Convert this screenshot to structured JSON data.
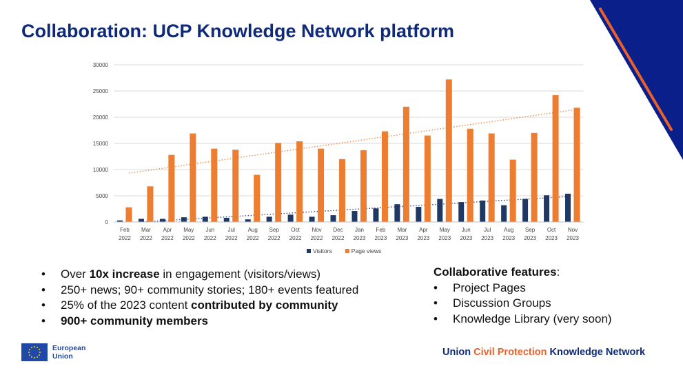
{
  "title": "Collaboration: UCP Knowledge Network platform",
  "chart_data": {
    "type": "bar",
    "categories": [
      [
        "Feb",
        "2022"
      ],
      [
        "Mar",
        "2022"
      ],
      [
        "Apr",
        "2022"
      ],
      [
        "May",
        "2022"
      ],
      [
        "Jun",
        "2022"
      ],
      [
        "Jul",
        "2022"
      ],
      [
        "Aug",
        "2022"
      ],
      [
        "Sep",
        "2022"
      ],
      [
        "Oct",
        "2022"
      ],
      [
        "Nov",
        "2022"
      ],
      [
        "Dec",
        "2022"
      ],
      [
        "Jan",
        "2023"
      ],
      [
        "Feb",
        "2023"
      ],
      [
        "Mar",
        "2023"
      ],
      [
        "Apr",
        "2023"
      ],
      [
        "May",
        "2023"
      ],
      [
        "Jun",
        "2023"
      ],
      [
        "Jul",
        "2023"
      ],
      [
        "Aug",
        "2023"
      ],
      [
        "Sep",
        "2023"
      ],
      [
        "Oct",
        "2023"
      ],
      [
        "Nov",
        "2023"
      ]
    ],
    "series": [
      {
        "name": "Visitors",
        "color": "#1f3864",
        "values": [
          300,
          600,
          600,
          900,
          1000,
          800,
          500,
          1000,
          1400,
          1000,
          1300,
          2100,
          2600,
          3400,
          2900,
          4400,
          3800,
          4100,
          3200,
          4400,
          5100,
          5400
        ],
        "trendline": "linear"
      },
      {
        "name": "Page views",
        "color": "#ed7d31",
        "values": [
          2800,
          6800,
          12800,
          16900,
          14000,
          13800,
          9000,
          15100,
          15400,
          14000,
          12000,
          13700,
          17300,
          22000,
          16500,
          27200,
          17800,
          16900,
          11900,
          17000,
          24200,
          21800
        ],
        "trendline": "linear"
      }
    ],
    "yticks": [
      0,
      5000,
      10000,
      15000,
      20000,
      25000,
      30000
    ],
    "ylim": [
      0,
      30000
    ],
    "grid": true,
    "legend": "bottom"
  },
  "bullets": [
    [
      {
        "t": "Over "
      },
      {
        "t": "10x increase",
        "b": true
      },
      {
        "t": " in engagement (visitors/views)"
      }
    ],
    [
      {
        "t": "250+ news; 90+ community stories; 180+ events featured"
      }
    ],
    [
      {
        "t": "25% of the 2023 content "
      },
      {
        "t": "contributed by community",
        "b": true
      }
    ],
    [
      {
        "t": "900+ community members",
        "b": true
      }
    ]
  ],
  "features": {
    "heading": "Collaborative features",
    "colon": ":",
    "items": [
      "Project Pages",
      "Discussion Groups",
      "Knowledge Library (very soon)"
    ]
  },
  "logo": {
    "line1": "European",
    "line2": "Union"
  },
  "footer": {
    "part1": "Union ",
    "part2": "Civil Protection",
    "part3": " Knowledge Network"
  },
  "colors": {
    "navy": "#0e2a78",
    "accent": "#e8622a",
    "triangle": "#0a1f8a"
  }
}
